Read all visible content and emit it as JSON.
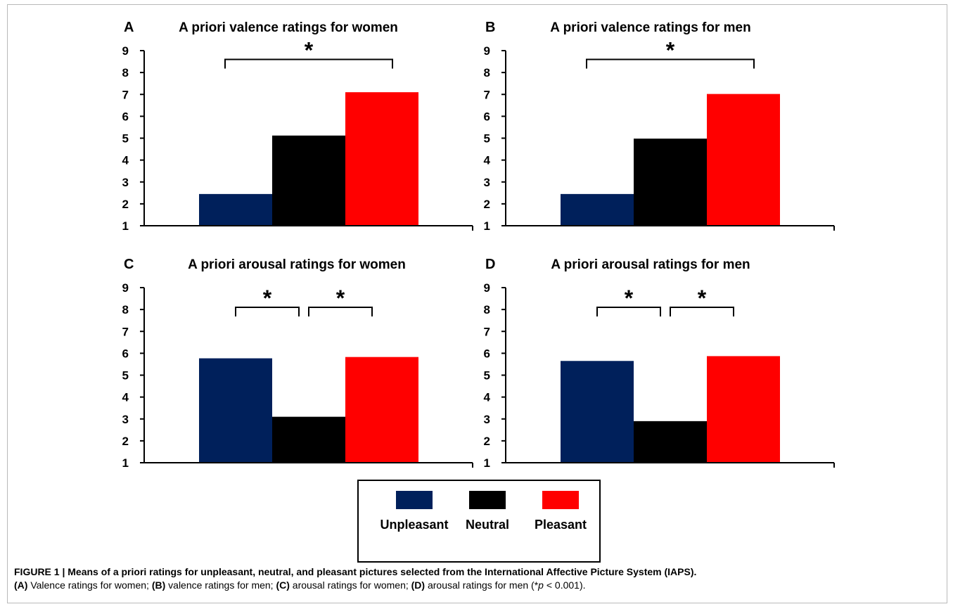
{
  "chart_data": [
    {
      "type": "bar",
      "panel": "A",
      "title": "A priori valence ratings for women",
      "categories": [
        "Unpleasant",
        "Neutral",
        "Pleasant"
      ],
      "values": [
        2.45,
        5.12,
        7.1
      ],
      "ylim": [
        1,
        9
      ],
      "yticks": [
        "1",
        "2",
        "3",
        "4",
        "5",
        "6",
        "7",
        "8",
        "9"
      ],
      "significance": [
        {
          "from": 0,
          "to": 2,
          "label": "*",
          "level": 8.6
        }
      ]
    },
    {
      "type": "bar",
      "panel": "B",
      "title": "A priori valence ratings for men",
      "categories": [
        "Unpleasant",
        "Neutral",
        "Pleasant"
      ],
      "values": [
        2.45,
        4.98,
        7.02
      ],
      "ylim": [
        1,
        9
      ],
      "yticks": [
        "1",
        "2",
        "3",
        "4",
        "5",
        "6",
        "7",
        "8",
        "9"
      ],
      "significance": [
        {
          "from": 0,
          "to": 2,
          "label": "*",
          "level": 8.6
        }
      ]
    },
    {
      "type": "bar",
      "panel": "C",
      "title": "A priori arousal ratings for women",
      "categories": [
        "Unpleasant",
        "Neutral",
        "Pleasant"
      ],
      "values": [
        5.77,
        3.1,
        5.83
      ],
      "ylim": [
        1,
        9
      ],
      "yticks": [
        "1",
        "2",
        "3",
        "4",
        "5",
        "6",
        "7",
        "8",
        "9"
      ],
      "significance": [
        {
          "from": 0,
          "to": 1,
          "label": "*",
          "level": 8.1
        },
        {
          "from": 1,
          "to": 2,
          "label": "*",
          "level": 8.1
        }
      ]
    },
    {
      "type": "bar",
      "panel": "D",
      "title": "A priori arousal ratings for men",
      "categories": [
        "Unpleasant",
        "Neutral",
        "Pleasant"
      ],
      "values": [
        5.65,
        2.9,
        5.87
      ],
      "ylim": [
        1,
        9
      ],
      "yticks": [
        "1",
        "2",
        "3",
        "4",
        "5",
        "6",
        "7",
        "8",
        "9"
      ],
      "significance": [
        {
          "from": 0,
          "to": 1,
          "label": "*",
          "level": 8.1
        },
        {
          "from": 1,
          "to": 2,
          "label": "*",
          "level": 8.1
        }
      ]
    }
  ],
  "colors": {
    "Unpleasant": "#00205b",
    "Neutral": "#000000",
    "Pleasant": "#ff0000"
  },
  "legend": {
    "items": [
      {
        "label": "Unpleasant",
        "color": "#00205b"
      },
      {
        "label": "Neutral",
        "color": "#000000"
      },
      {
        "label": "Pleasant",
        "color": "#ff0000"
      }
    ]
  },
  "caption": {
    "title": "FIGURE 1 | Means of a priori ratings for unpleasant, neutral, and pleasant pictures selected from the International Affective Picture System (IAPS).",
    "line": [
      {
        "b": "(A)",
        "t": " Valence ratings for women; "
      },
      {
        "b": "(B)",
        "t": " valence ratings for men; "
      },
      {
        "b": "(C)",
        "t": " arousal ratings for women; "
      },
      {
        "b": "(D)",
        "t": " arousal ratings for men (*"
      },
      {
        "i": "p",
        "t": " < 0.001)."
      }
    ]
  }
}
